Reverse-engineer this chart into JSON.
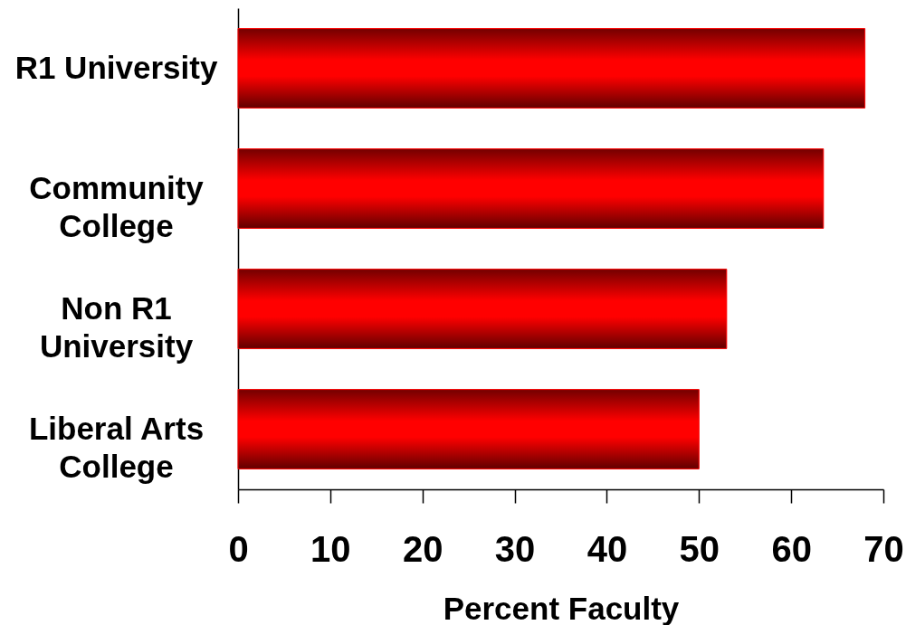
{
  "chart_data": {
    "type": "bar",
    "orientation": "horizontal",
    "categories": [
      "R1 University",
      "Community College",
      "Non R1 University",
      "Liberal Arts College"
    ],
    "values": [
      68,
      63.5,
      53,
      50
    ],
    "color": "#ff0000",
    "xlabel": "Percent Faculty",
    "xlim": [
      0,
      70
    ],
    "xticks": [
      0,
      10,
      20,
      30,
      40,
      50,
      60,
      70
    ],
    "grid": false
  }
}
